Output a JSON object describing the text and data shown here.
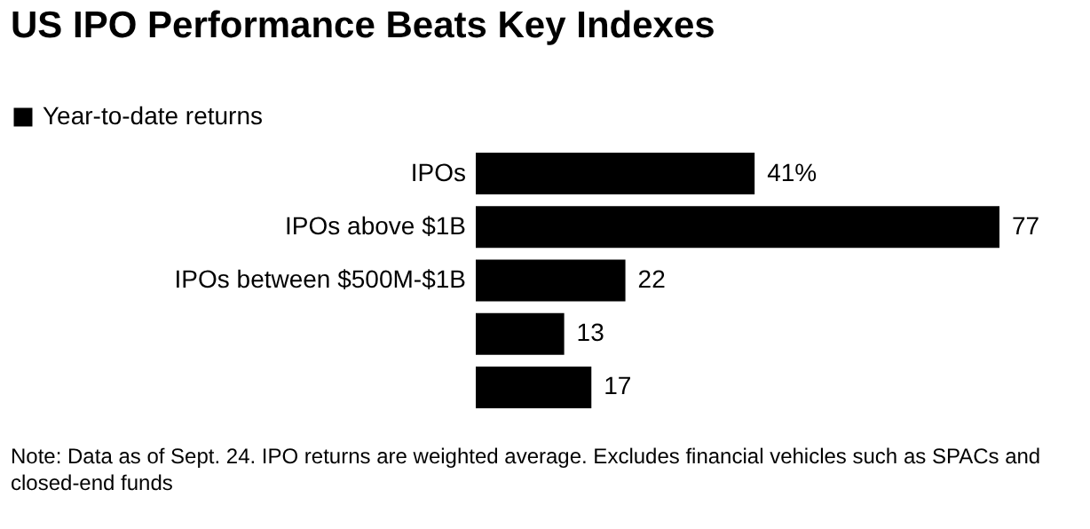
{
  "chart_data": {
    "type": "bar",
    "orientation": "horizontal",
    "title": "US IPO Performance Beats Key Indexes",
    "categories": [
      "IPOs",
      "IPOs above $1B",
      "IPOs between $500M-$1B",
      null,
      null
    ],
    "series": [
      {
        "name": "Year-to-date returns",
        "color": "#000000",
        "values": [
          41,
          77,
          22,
          13,
          17
        ],
        "value_labels": [
          "41%",
          "77",
          "22",
          "13",
          "17"
        ]
      }
    ],
    "legend": "top left",
    "annotations": [
      "Note: Data as of Sept. 24. IPO returns are weighted average. Excludes financial vehicles such as SPACs and closed-end funds"
    ]
  }
}
